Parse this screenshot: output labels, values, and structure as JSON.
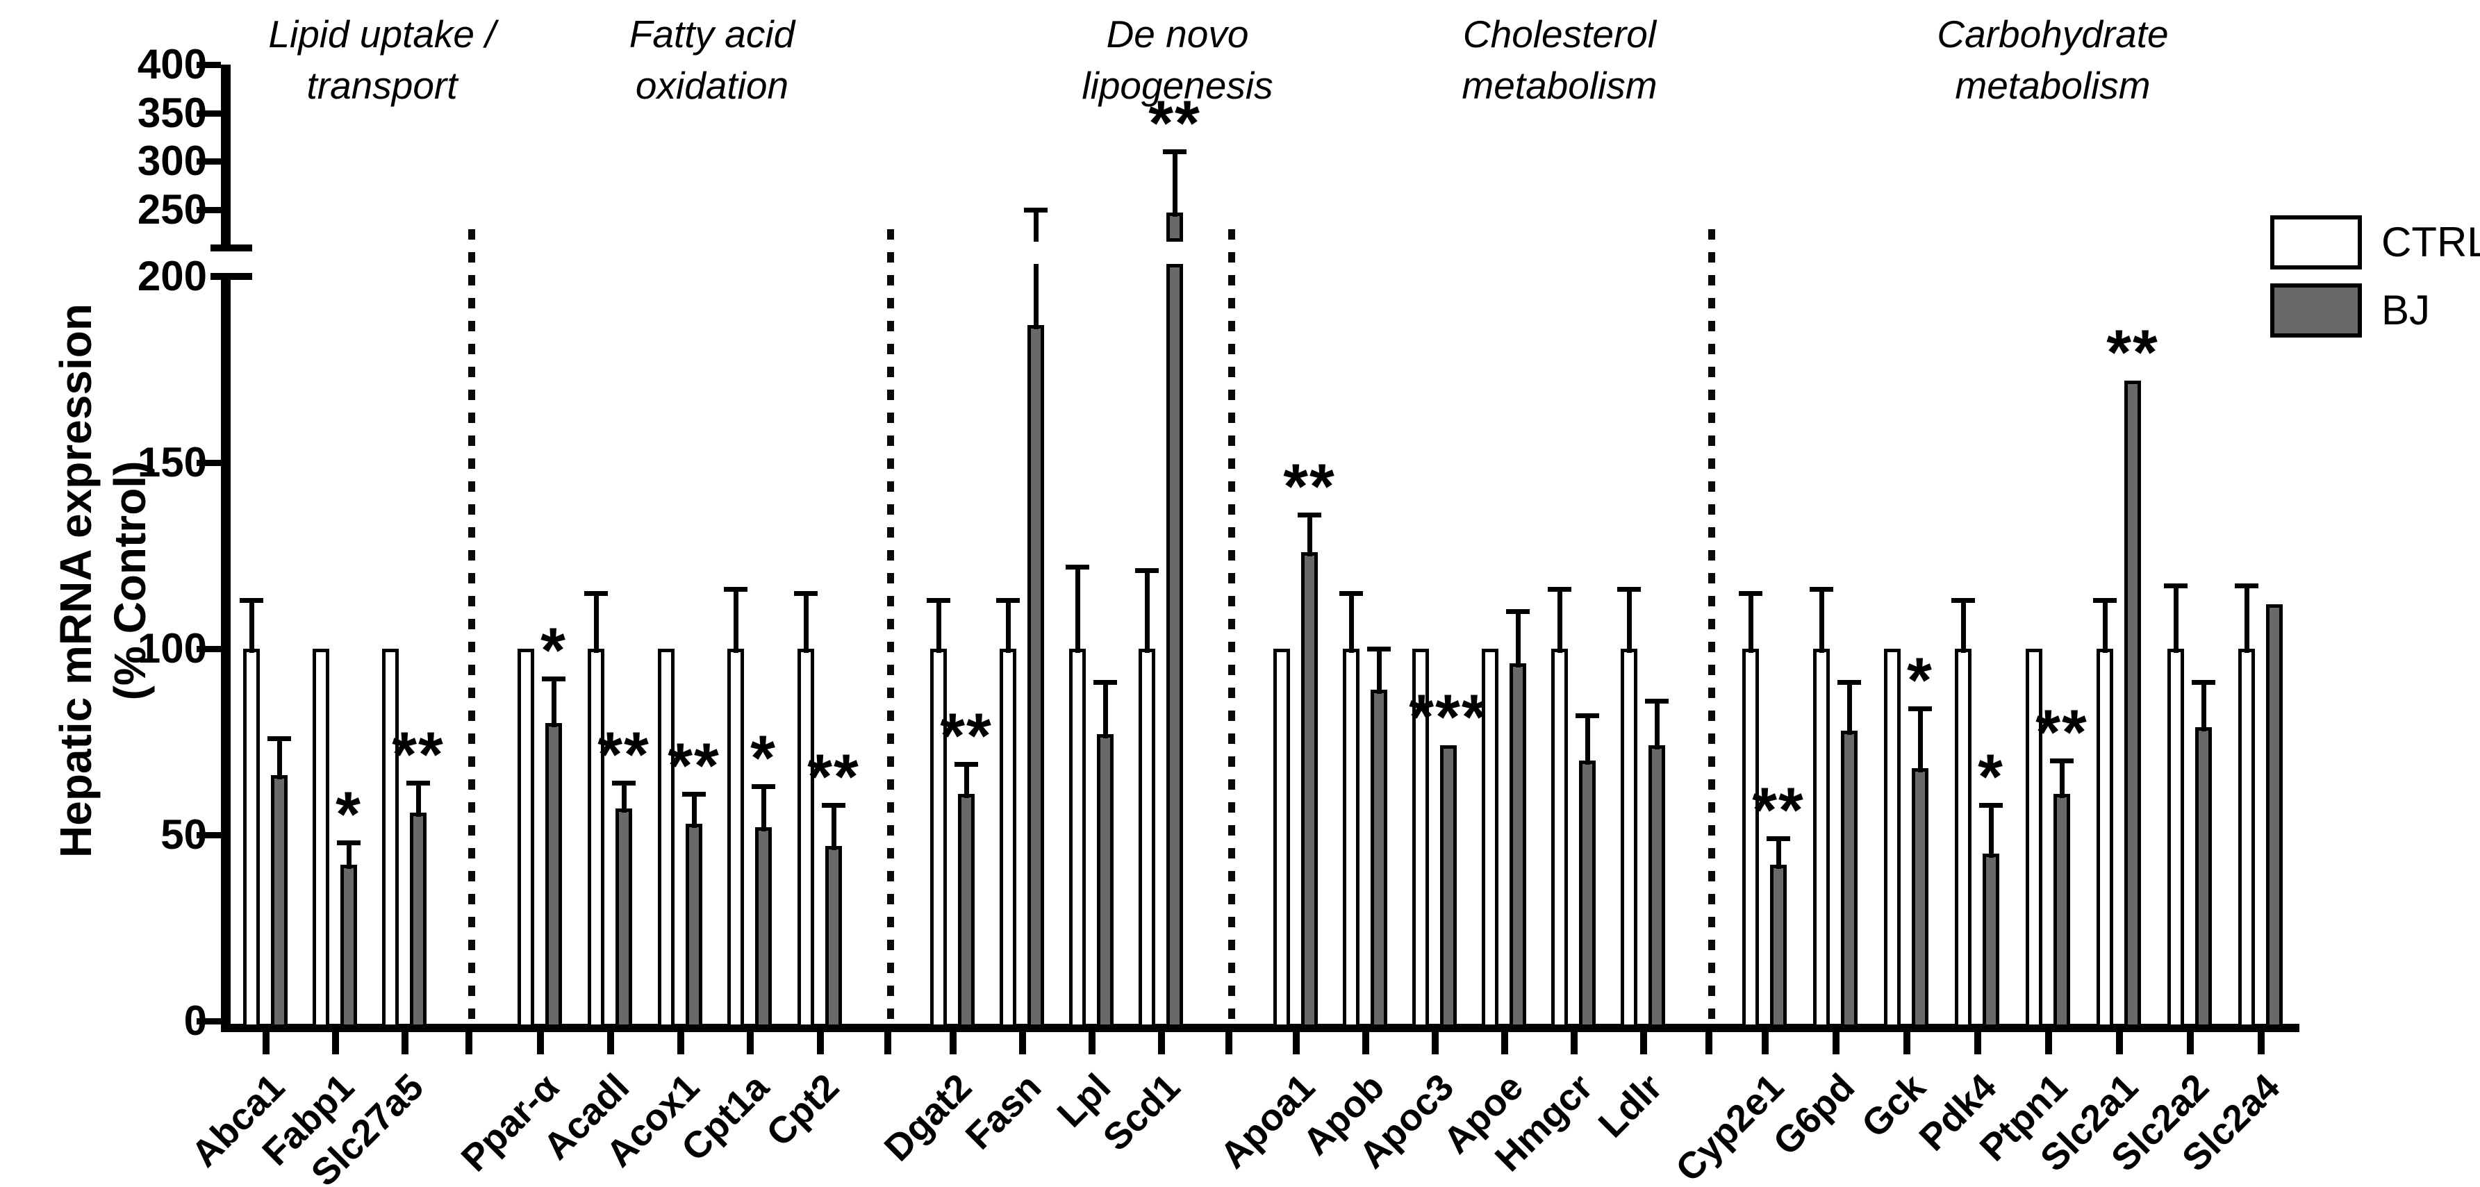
{
  "chart_data": {
    "type": "bar",
    "title": "",
    "ylabel": "Hepatic mRNA expression (% Control)",
    "ylabel_line1": "Hepatic mRNA expression",
    "ylabel_line2": "(% Control)",
    "y_axis": {
      "bottom_ticks": [
        0,
        50,
        100,
        150,
        200
      ],
      "top_ticks": [
        250,
        300,
        350,
        400
      ],
      "has_axis_break": true,
      "break_between": [
        200,
        250
      ],
      "ylim": [
        0,
        400
      ]
    },
    "series": [
      {
        "name": "CTRL",
        "color": "#ffffff"
      },
      {
        "name": "BJ",
        "color": "#696969"
      }
    ],
    "legend_position": "top-right",
    "grid": false,
    "groups": [
      {
        "label_line1": "Lipid uptake /",
        "label_line2": "transport",
        "genes": [
          {
            "name": "Abca1",
            "ctrl": 100,
            "ctrl_err_top": 113,
            "bj": 66,
            "bj_err_top": 76,
            "sig": ""
          },
          {
            "name": "Fabp1",
            "ctrl": 100,
            "ctrl_err_top": null,
            "bj": 42,
            "bj_err_top": 48,
            "sig": "*"
          },
          {
            "name": "Slc27a5",
            "ctrl": 100,
            "ctrl_err_top": null,
            "bj": 56,
            "bj_err_top": 64,
            "sig": "**"
          }
        ]
      },
      {
        "label_line1": "Fatty acid",
        "label_line2": "oxidation",
        "genes": [
          {
            "name": "Ppar-α",
            "ctrl": 100,
            "ctrl_err_top": null,
            "bj": 80,
            "bj_err_top": 92,
            "sig": "*"
          },
          {
            "name": "Acadl",
            "ctrl": 100,
            "ctrl_err_top": 115,
            "bj": 57,
            "bj_err_top": 64,
            "sig": "**"
          },
          {
            "name": "Acox1",
            "ctrl": 100,
            "ctrl_err_top": null,
            "bj": 53,
            "bj_err_top": 61,
            "sig": "**"
          },
          {
            "name": "Cpt1a",
            "ctrl": 100,
            "ctrl_err_top": 116,
            "bj": 52,
            "bj_err_top": 63,
            "sig": "*"
          },
          {
            "name": "Cpt2",
            "ctrl": 100,
            "ctrl_err_top": 115,
            "bj": 47,
            "bj_err_top": 58,
            "sig": "**"
          }
        ]
      },
      {
        "label_line1": "De novo",
        "label_line2": "lipogenesis",
        "genes": [
          {
            "name": "Dgat2",
            "ctrl": 100,
            "ctrl_err_top": 113,
            "bj": 61,
            "bj_err_top": 69,
            "sig": "**"
          },
          {
            "name": "Fasn",
            "ctrl": 100,
            "ctrl_err_top": 113,
            "bj": 187,
            "bj_err_top": 250,
            "sig": ""
          },
          {
            "name": "Lpl",
            "ctrl": 100,
            "ctrl_err_top": 122,
            "bj": 77,
            "bj_err_top": 91,
            "sig": ""
          },
          {
            "name": "Scd1",
            "ctrl": 100,
            "ctrl_err_top": 121,
            "bj": 248,
            "bj_err_top": 310,
            "sig": "**"
          }
        ]
      },
      {
        "label_line1": "Cholesterol",
        "label_line2": "metabolism",
        "genes": [
          {
            "name": "Apoa1",
            "ctrl": 100,
            "ctrl_err_top": null,
            "bj": 126,
            "bj_err_top": 136,
            "sig": "**"
          },
          {
            "name": "Apob",
            "ctrl": 100,
            "ctrl_err_top": 115,
            "bj": 89,
            "bj_err_top": 100,
            "sig": ""
          },
          {
            "name": "Apoc3",
            "ctrl": 100,
            "ctrl_err_top": null,
            "bj": 74,
            "bj_err_top": null,
            "sig": "***"
          },
          {
            "name": "Apoe",
            "ctrl": 100,
            "ctrl_err_top": null,
            "bj": 96,
            "bj_err_top": 110,
            "sig": ""
          },
          {
            "name": "Hmgcr",
            "ctrl": 100,
            "ctrl_err_top": 116,
            "bj": 70,
            "bj_err_top": 82,
            "sig": ""
          },
          {
            "name": "Ldlr",
            "ctrl": 100,
            "ctrl_err_top": 116,
            "bj": 74,
            "bj_err_top": 86,
            "sig": ""
          }
        ]
      },
      {
        "label_line1": "Carbohydrate",
        "label_line2": "metabolism",
        "genes": [
          {
            "name": "Cyp2e1",
            "ctrl": 100,
            "ctrl_err_top": 115,
            "bj": 42,
            "bj_err_top": 49,
            "sig": "**"
          },
          {
            "name": "G6pd",
            "ctrl": 100,
            "ctrl_err_top": 116,
            "bj": 78,
            "bj_err_top": 91,
            "sig": ""
          },
          {
            "name": "Gck",
            "ctrl": 100,
            "ctrl_err_top": null,
            "bj": 68,
            "bj_err_top": 84,
            "sig": "*"
          },
          {
            "name": "Pdk4",
            "ctrl": 100,
            "ctrl_err_top": 113,
            "bj": 45,
            "bj_err_top": 58,
            "sig": "*"
          },
          {
            "name": "Ptpn1",
            "ctrl": 100,
            "ctrl_err_top": null,
            "bj": 61,
            "bj_err_top": 70,
            "sig": "**"
          },
          {
            "name": "Slc2a1",
            "ctrl": 100,
            "ctrl_err_top": 113,
            "bj": 172,
            "bj_err_top": null,
            "sig": "**"
          },
          {
            "name": "Slc2a2",
            "ctrl": 100,
            "ctrl_err_top": 117,
            "bj": 79,
            "bj_err_top": 91,
            "sig": ""
          },
          {
            "name": "Slc2a4",
            "ctrl": 100,
            "ctrl_err_top": 117,
            "bj": 112,
            "bj_err_top": null,
            "sig": ""
          }
        ]
      }
    ]
  }
}
